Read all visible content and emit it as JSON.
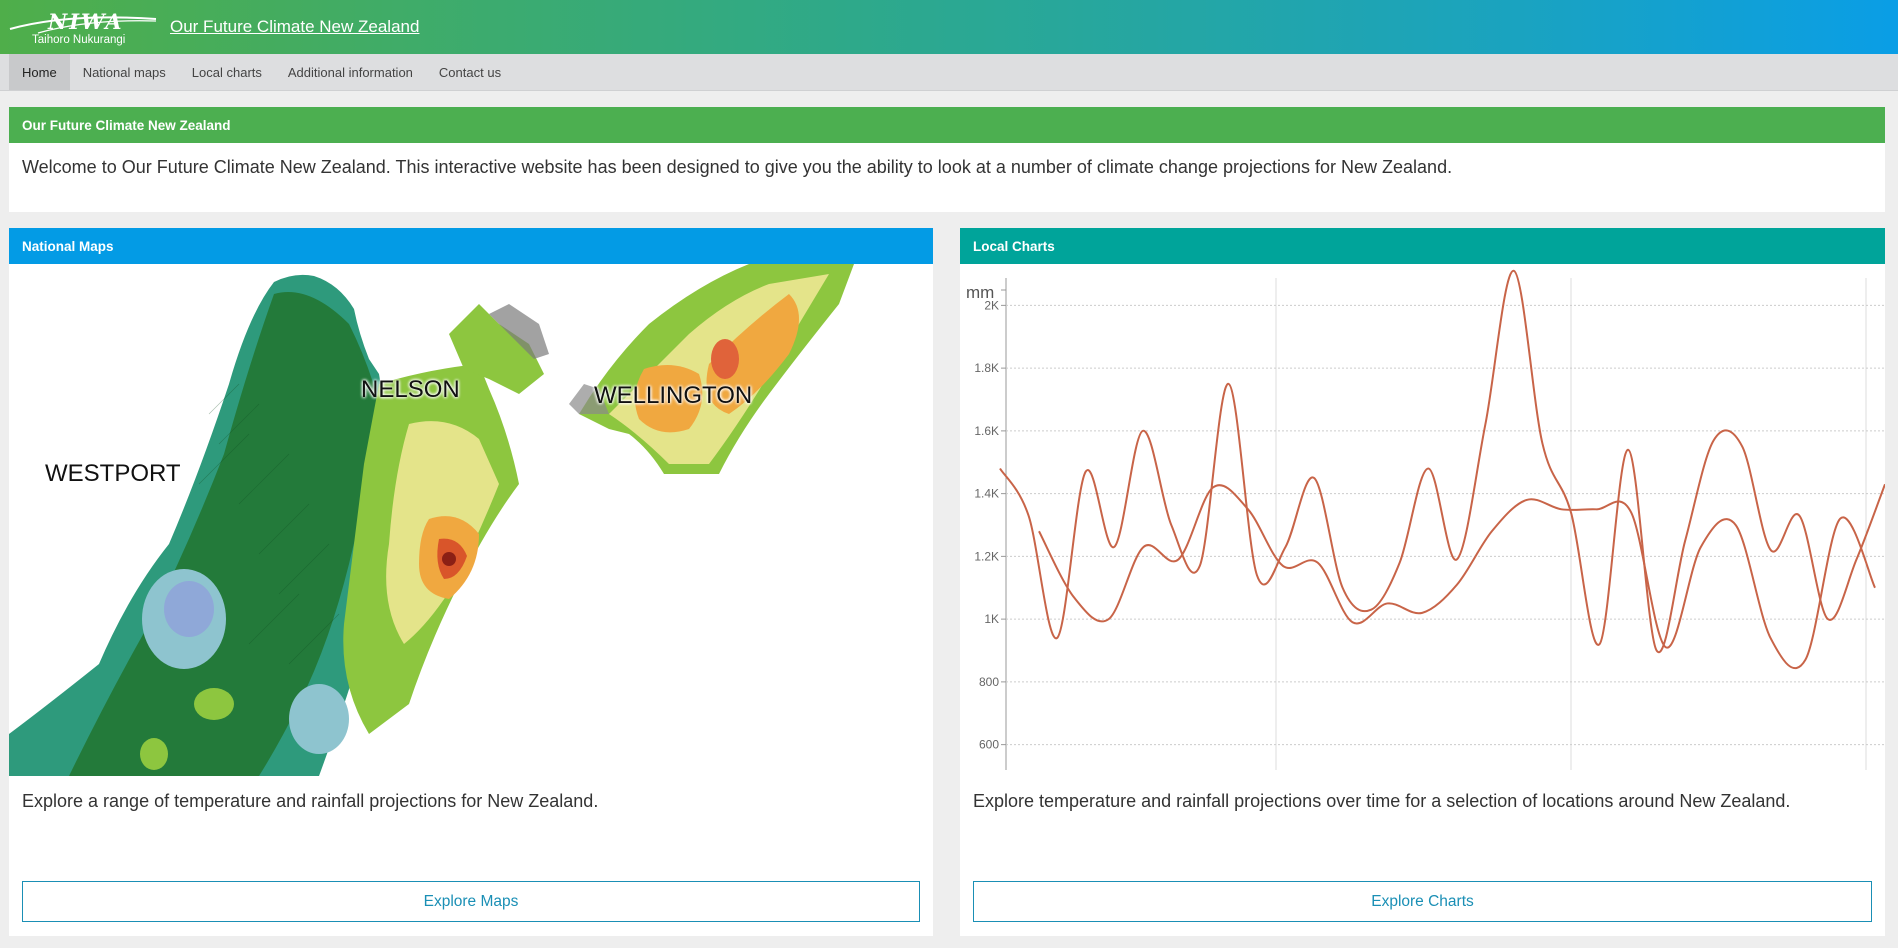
{
  "header": {
    "logo_text": "NIWA",
    "logo_subtitle": "Taihoro Nukurangi",
    "site_title": "Our Future Climate New Zealand"
  },
  "nav": {
    "items": [
      {
        "label": "Home",
        "active": true
      },
      {
        "label": "National maps"
      },
      {
        "label": "Local charts"
      },
      {
        "label": "Additional information"
      },
      {
        "label": "Contact us"
      }
    ]
  },
  "welcome": {
    "heading": "Our Future Climate New Zealand",
    "text": "Welcome to Our Future Climate New Zealand. This interactive website has been designed to give you the ability to look at a number of climate change projections for New Zealand."
  },
  "maps_panel": {
    "heading": "National Maps",
    "labels": [
      "NELSON",
      "WELLINGTON",
      "WESTPORT"
    ],
    "description": "Explore a range of temperature and rainfall projections for New Zealand.",
    "button": "Explore Maps"
  },
  "charts_panel": {
    "heading": "Local Charts",
    "description": "Explore temperature and rainfall projections over time for a selection of locations around New Zealand.",
    "button": "Explore Charts"
  },
  "chart_data": {
    "type": "line",
    "ylabel": "mm",
    "yticks": [
      "600",
      "800",
      "1K",
      "1.2K",
      "1.4K",
      "1.6K",
      "1.8K",
      "2K"
    ],
    "ylim": [
      500,
      2100
    ],
    "color": "#c86448",
    "series": [
      {
        "values": [
          1480,
          1330,
          940,
          1470,
          1230,
          1600,
          1300,
          1170,
          1750,
          1140,
          1230,
          1450,
          1100,
          1030,
          1180,
          1480,
          1190,
          1620,
          2110,
          1560,
          1340,
          920,
          1540,
          900,
          1250,
          1570,
          1550,
          1220,
          1330,
          1000,
          1190,
          1430
        ]
      },
      {
        "values": [
          1280,
          1070,
          1000,
          1230,
          1190,
          1420,
          1350,
          1170,
          1180,
          990,
          1050,
          1020,
          1110,
          1280,
          1380,
          1350,
          1350,
          1340,
          910,
          1230,
          1300,
          940,
          870,
          1320,
          1100
        ]
      }
    ]
  }
}
